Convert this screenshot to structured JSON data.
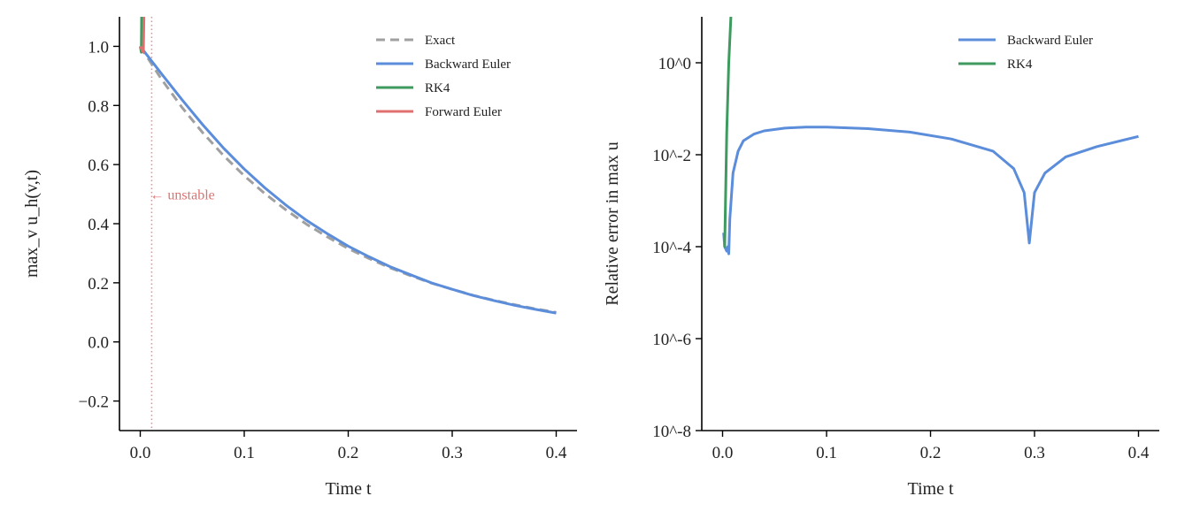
{
  "chart_data": [
    {
      "type": "line",
      "xlabel": "Time t",
      "ylabel": "max_v u_h(v,t)",
      "xlim": [
        -0.02,
        0.42
      ],
      "ylim": [
        -0.3,
        1.1
      ],
      "xticks": [
        0.0,
        0.1,
        0.2,
        0.3,
        0.4
      ],
      "xtick_labels": [
        "0.0",
        "0.1",
        "0.2",
        "0.3",
        "0.4"
      ],
      "yticks": [
        -0.2,
        0.0,
        0.2,
        0.4,
        0.6,
        0.8,
        1.0
      ],
      "ytick_labels": [
        "−0.2",
        "0.0",
        "0.2",
        "0.4",
        "0.6",
        "0.8",
        "1.0"
      ],
      "legend_placement": "top-right",
      "grid": false,
      "series": [
        {
          "name": "Exact",
          "color": "#a0a0a0",
          "style": "dashed",
          "x": [
            0,
            0.02,
            0.04,
            0.06,
            0.08,
            0.1,
            0.12,
            0.14,
            0.16,
            0.18,
            0.2,
            0.22,
            0.24,
            0.26,
            0.28,
            0.3,
            0.32,
            0.34,
            0.36,
            0.38,
            0.4
          ],
          "y": [
            1.0,
            0.891,
            0.794,
            0.708,
            0.631,
            0.562,
            0.501,
            0.447,
            0.398,
            0.355,
            0.316,
            0.282,
            0.251,
            0.224,
            0.199,
            0.178,
            0.158,
            0.141,
            0.126,
            0.112,
            0.1
          ]
        },
        {
          "name": "Backward Euler",
          "color": "#5b8ddb",
          "style": "solid",
          "x": [
            0,
            0.02,
            0.04,
            0.06,
            0.08,
            0.1,
            0.12,
            0.14,
            0.16,
            0.18,
            0.2,
            0.22,
            0.24,
            0.26,
            0.28,
            0.3,
            0.32,
            0.34,
            0.36,
            0.38,
            0.4
          ],
          "y": [
            1.0,
            0.909,
            0.82,
            0.735,
            0.656,
            0.585,
            0.521,
            0.463,
            0.411,
            0.366,
            0.324,
            0.288,
            0.255,
            0.227,
            0.2,
            0.178,
            0.157,
            0.14,
            0.124,
            0.11,
            0.0975
          ]
        },
        {
          "name": "RK4",
          "color": "#3f9a5f",
          "style": "solid",
          "x": [
            0,
            0.001,
            0.0015
          ],
          "y": [
            1.0,
            0.98,
            1.2
          ]
        },
        {
          "name": "Forward Euler",
          "color": "#e07070",
          "style": "solid",
          "x": [
            0,
            0.003,
            0.004
          ],
          "y": [
            1.0,
            0.98,
            1.2
          ]
        }
      ],
      "annotations": [
        {
          "text": "← unstable",
          "x": 0.011,
          "y": 0.5,
          "color": "#e07070"
        }
      ],
      "vline": {
        "x": 0.011,
        "color": "#e07070",
        "style": "dotted"
      }
    },
    {
      "type": "line",
      "xlabel": "Time t",
      "ylabel": "Relative error in max u",
      "xlim": [
        -0.02,
        0.42
      ],
      "ylim": [
        1e-08,
        10
      ],
      "yscale": "log",
      "xticks": [
        0.0,
        0.1,
        0.2,
        0.3,
        0.4
      ],
      "xtick_labels": [
        "0.0",
        "0.1",
        "0.2",
        "0.3",
        "0.4"
      ],
      "yticks": [
        1e-08,
        1e-06,
        0.0001,
        0.01,
        1
      ],
      "ytick_labels": [
        "10^-8",
        "10^-6",
        "10^-4",
        "10^-2",
        "10^0"
      ],
      "legend_placement": "top-right",
      "grid": false,
      "series": [
        {
          "name": "Backward Euler",
          "color": "#5b8ddb",
          "x": [
            0.001,
            0.002,
            0.004,
            0.005,
            0.006,
            0.007,
            0.01,
            0.015,
            0.02,
            0.03,
            0.04,
            0.06,
            0.08,
            0.1,
            0.14,
            0.18,
            0.22,
            0.26,
            0.28,
            0.29,
            0.295,
            0.3,
            0.31,
            0.33,
            0.36,
            0.4
          ],
          "y": [
            0.0002,
            0.0001,
            8e-05,
            0.0001,
            7e-05,
            0.0004,
            0.004,
            0.012,
            0.02,
            0.028,
            0.033,
            0.038,
            0.04,
            0.04,
            0.037,
            0.031,
            0.022,
            0.012,
            0.005,
            0.0015,
            0.00012,
            0.0015,
            0.004,
            0.009,
            0.015,
            0.025
          ]
        },
        {
          "name": "RK4",
          "color": "#3f9a5f",
          "x": [
            0.001,
            0.002,
            0.004,
            0.006,
            0.008
          ],
          "y": [
            0.0001,
            0.0001,
            0.03,
            1.0,
            10
          ]
        }
      ]
    }
  ]
}
